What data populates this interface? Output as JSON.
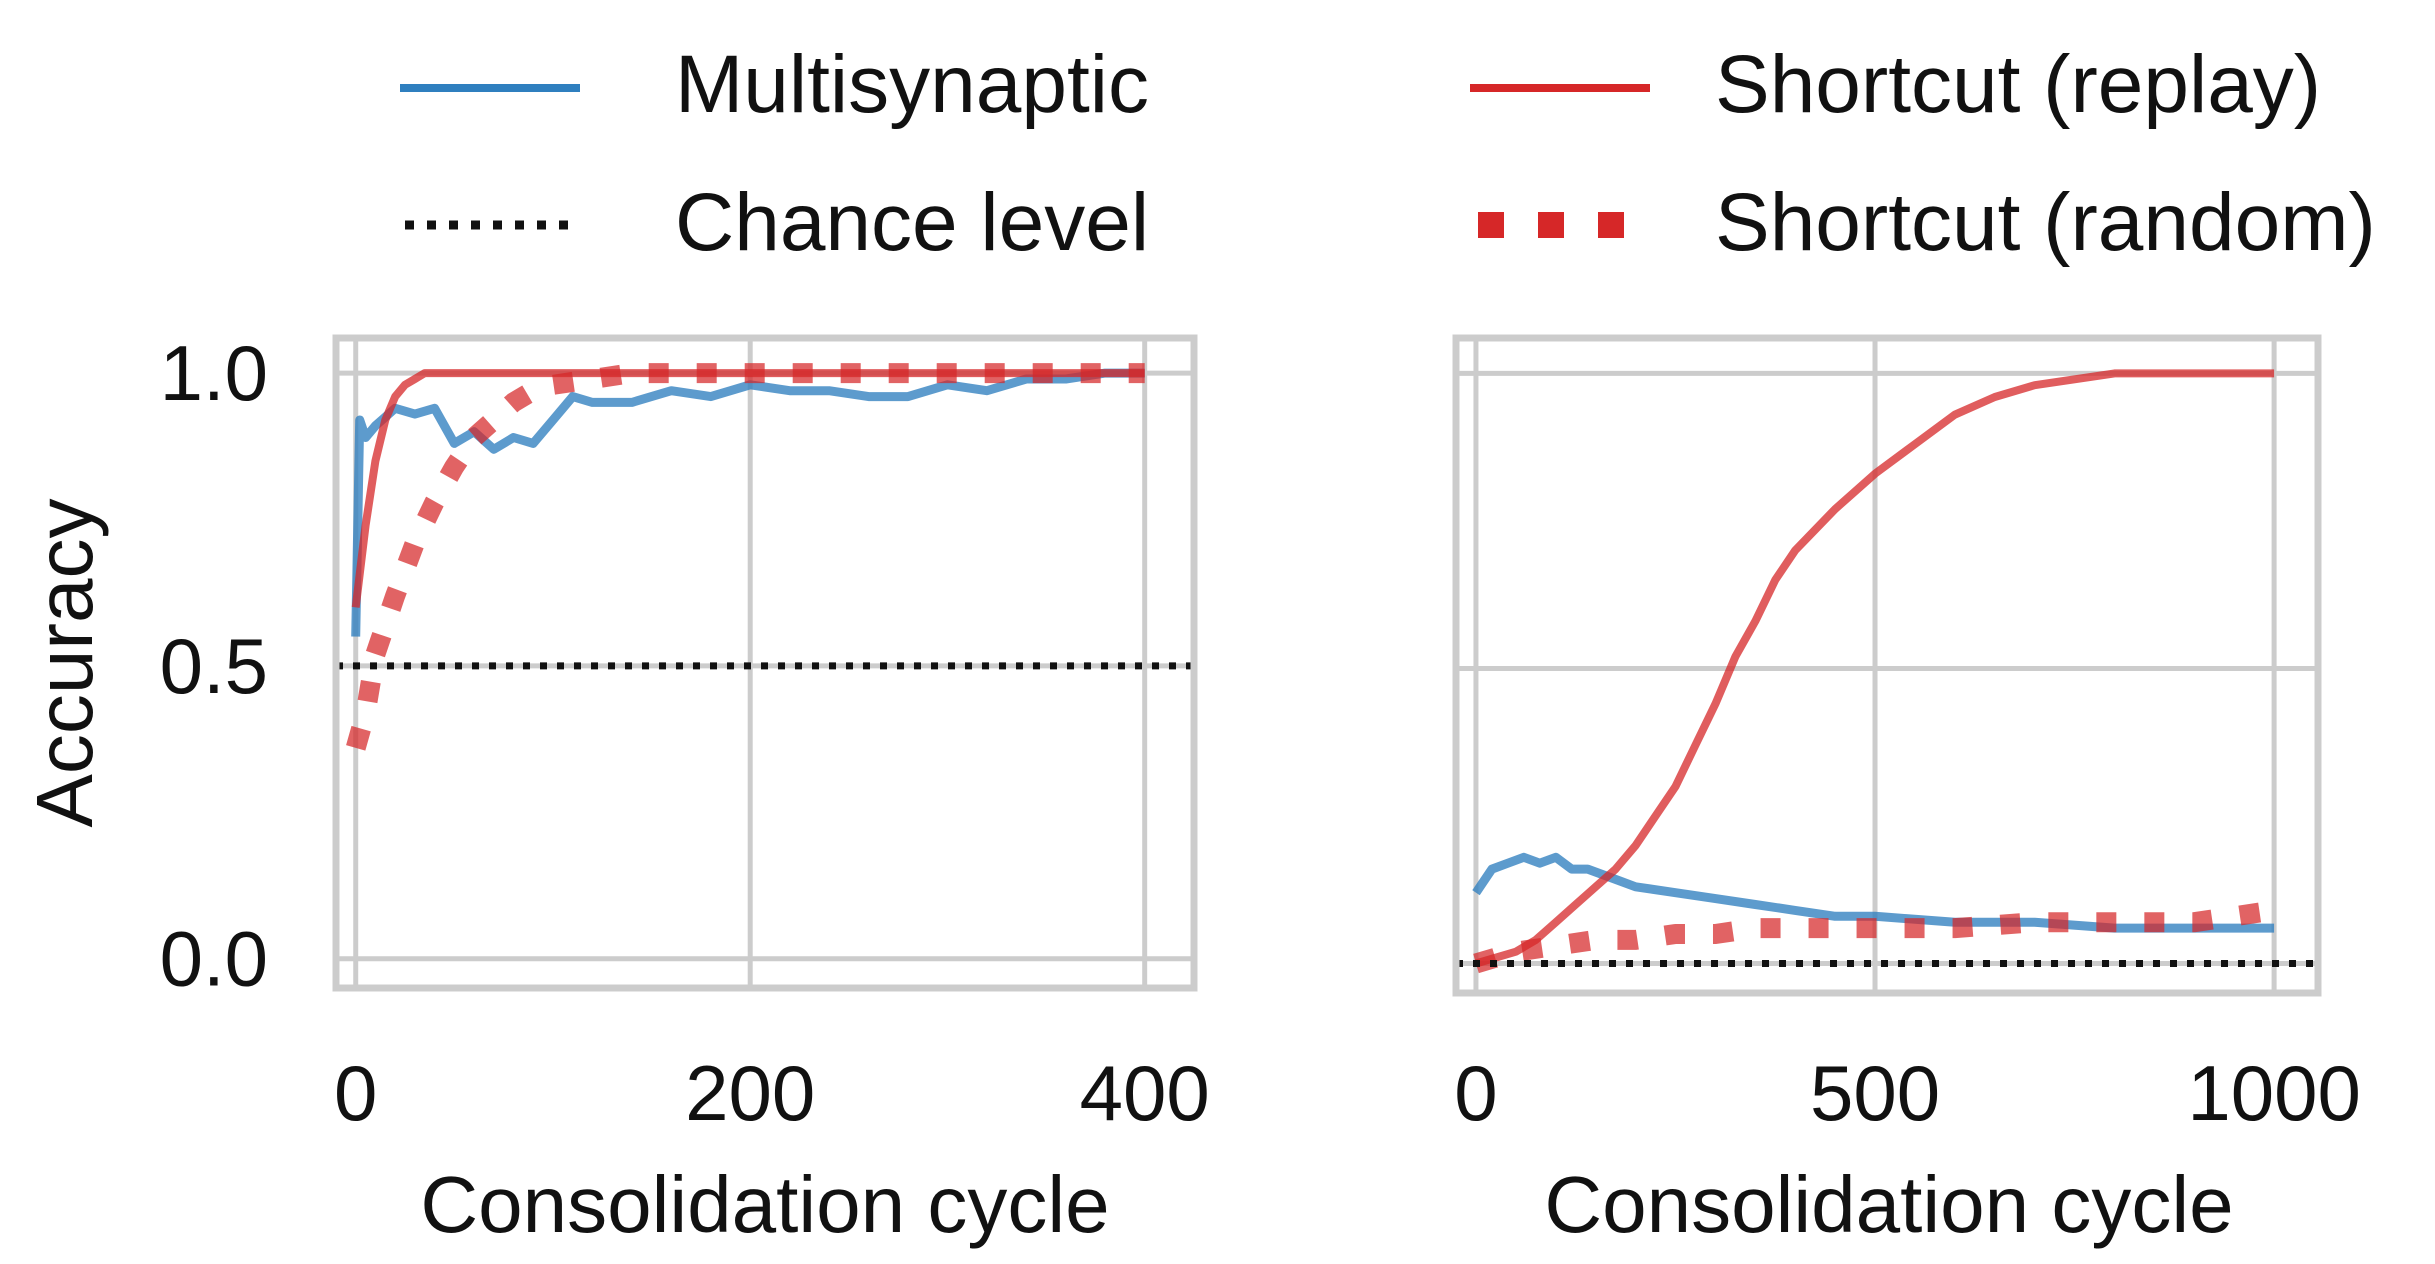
{
  "legend": {
    "multisynaptic": "Multisynaptic",
    "chance": "Chance level",
    "shortcut_replay": "Shortcut (replay)",
    "shortcut_random": "Shortcut (random)"
  },
  "colors": {
    "multisynaptic": "#2f7fbf",
    "shortcut": "#d62728",
    "chance": "#111111",
    "grid": "#cccccc"
  },
  "chart_data": [
    {
      "type": "line",
      "xlabel": "Consolidation cycle",
      "ylabel": "Accuracy",
      "xlim": [
        -10,
        425
      ],
      "ylim": [
        -0.05,
        1.06
      ],
      "xticks": [
        0,
        200,
        400
      ],
      "xtick_labels": [
        "0",
        "200",
        "400"
      ],
      "yticks": [
        0.0,
        0.5,
        1.0
      ],
      "ytick_labels": [
        "0.0",
        "0.5",
        "1.0"
      ],
      "grid": true,
      "series": [
        {
          "name": "Multisynaptic",
          "style": "solid",
          "x": [
            0,
            2,
            5,
            10,
            20,
            30,
            40,
            50,
            60,
            70,
            80,
            90,
            100,
            110,
            120,
            140,
            160,
            180,
            200,
            220,
            240,
            260,
            280,
            300,
            320,
            340,
            360,
            380,
            400
          ],
          "y": [
            0.55,
            0.92,
            0.89,
            0.91,
            0.94,
            0.93,
            0.94,
            0.88,
            0.9,
            0.87,
            0.89,
            0.88,
            0.92,
            0.96,
            0.95,
            0.95,
            0.97,
            0.96,
            0.98,
            0.97,
            0.97,
            0.96,
            0.96,
            0.98,
            0.97,
            0.99,
            0.99,
            1.0,
            1.0
          ]
        },
        {
          "name": "Shortcut (replay)",
          "style": "solid",
          "x": [
            0,
            5,
            10,
            15,
            20,
            25,
            30,
            35,
            40,
            60,
            100,
            200,
            300,
            400
          ],
          "y": [
            0.6,
            0.74,
            0.85,
            0.92,
            0.96,
            0.98,
            0.99,
            1.0,
            1.0,
            1.0,
            1.0,
            1.0,
            1.0,
            1.0
          ]
        },
        {
          "name": "Shortcut (random)",
          "style": "dotted",
          "x": [
            0,
            5,
            10,
            20,
            30,
            40,
            50,
            60,
            70,
            80,
            90,
            100,
            120,
            140,
            160,
            200,
            250,
            300,
            350,
            400
          ],
          "y": [
            0.36,
            0.42,
            0.52,
            0.62,
            0.71,
            0.78,
            0.84,
            0.89,
            0.92,
            0.95,
            0.97,
            0.98,
            0.99,
            1.0,
            1.0,
            1.0,
            1.0,
            1.0,
            1.0,
            1.0
          ]
        },
        {
          "name": "Chance level",
          "style": "dotted",
          "x": [
            -10,
            425
          ],
          "y": [
            0.5,
            0.5
          ]
        }
      ]
    },
    {
      "type": "line",
      "xlabel": "Consolidation cycle",
      "ylabel": "",
      "xlim": [
        -25,
        1055
      ],
      "ylim": [
        -0.05,
        1.06
      ],
      "xticks": [
        0,
        500,
        1000
      ],
      "xtick_labels": [
        "0",
        "500",
        "1000"
      ],
      "yticks": [
        0.0,
        0.5,
        1.0
      ],
      "ytick_labels": [
        "",
        "",
        ""
      ],
      "grid": true,
      "series": [
        {
          "name": "Multisynaptic",
          "style": "solid",
          "x": [
            0,
            20,
            40,
            60,
            80,
            100,
            120,
            140,
            160,
            180,
            200,
            250,
            300,
            350,
            400,
            450,
            500,
            600,
            700,
            800,
            900,
            1000
          ],
          "y": [
            0.12,
            0.16,
            0.17,
            0.18,
            0.17,
            0.18,
            0.16,
            0.16,
            0.15,
            0.14,
            0.13,
            0.12,
            0.11,
            0.1,
            0.09,
            0.08,
            0.08,
            0.07,
            0.07,
            0.06,
            0.06,
            0.06
          ]
        },
        {
          "name": "Shortcut (replay)",
          "style": "solid",
          "x": [
            0,
            25,
            50,
            75,
            100,
            125,
            150,
            175,
            200,
            225,
            250,
            275,
            300,
            325,
            350,
            375,
            400,
            450,
            500,
            550,
            600,
            650,
            700,
            750,
            800,
            850,
            900,
            950,
            1000
          ],
          "y": [
            0.0,
            0.01,
            0.02,
            0.04,
            0.07,
            0.1,
            0.13,
            0.16,
            0.2,
            0.25,
            0.3,
            0.37,
            0.44,
            0.52,
            0.58,
            0.65,
            0.7,
            0.77,
            0.83,
            0.88,
            0.93,
            0.96,
            0.98,
            0.99,
            1.0,
            1.0,
            1.0,
            1.0,
            1.0
          ]
        },
        {
          "name": "Shortcut (random)",
          "style": "dotted",
          "x": [
            0,
            50,
            100,
            150,
            200,
            250,
            300,
            350,
            400,
            500,
            600,
            700,
            800,
            900,
            950,
            1000
          ],
          "y": [
            0.0,
            0.02,
            0.03,
            0.04,
            0.04,
            0.05,
            0.05,
            0.06,
            0.06,
            0.06,
            0.06,
            0.07,
            0.07,
            0.07,
            0.08,
            0.09
          ]
        },
        {
          "name": "Chance level",
          "style": "dotted",
          "x": [
            -25,
            1055
          ],
          "y": [
            0.0,
            0.0
          ]
        }
      ]
    }
  ]
}
